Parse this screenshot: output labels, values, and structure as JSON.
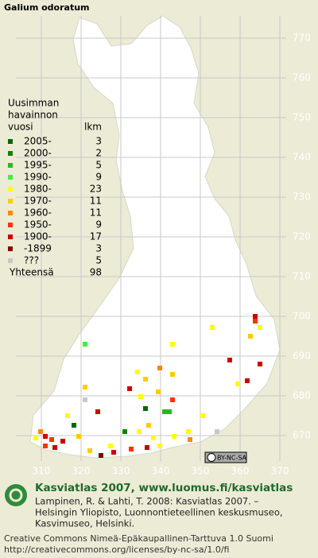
{
  "title": "Galium odoratum",
  "legend": {
    "heading": [
      "Uusimman",
      "havainnon",
      "vuosi"
    ],
    "count_heading": "lkm",
    "rows": [
      {
        "label": "2005-",
        "count": 3,
        "color": "#006600"
      },
      {
        "label": "2000-",
        "count": 2,
        "color": "#008800"
      },
      {
        "label": "1995-",
        "count": 5,
        "color": "#22bb22"
      },
      {
        "label": "1990-",
        "count": 9,
        "color": "#44ee44"
      },
      {
        "label": "1980-",
        "count": 23,
        "color": "#ffff00"
      },
      {
        "label": "1970-",
        "count": 11,
        "color": "#ffcc00"
      },
      {
        "label": "1960-",
        "count": 11,
        "color": "#ff8800"
      },
      {
        "label": "1950-",
        "count": 9,
        "color": "#ff3300"
      },
      {
        "label": "1900-",
        "count": 17,
        "color": "#cc0000"
      },
      {
        "label": "-1899",
        "count": 3,
        "color": "#880000"
      },
      {
        "label": "???",
        "count": 5,
        "color": "#c8c8c8"
      }
    ],
    "total_label": "Yhteensä",
    "total": 98
  },
  "map": {
    "northing": [
      770,
      760,
      750,
      740,
      730,
      720,
      710,
      700,
      690,
      680,
      670
    ],
    "easting": [
      310,
      320,
      330,
      340,
      350,
      360,
      370
    ]
  },
  "license_badge": "BY-NC-SA",
  "footer": {
    "heading": "Kasviatlas 2007, www.luomus.fi/kasviatlas",
    "citation": [
      "Lampinen, R. & Lahti, T. 2008: Kasviatlas 2007. –",
      "Helsingin Yliopisto, Luonnontieteellinen keskusmuseo,",
      "Kasvimuseo, Helsinki."
    ],
    "license": [
      "Creative Commons Nimeä-Epäkaupallinen-Tarttuva 1.0 Suomi",
      "http://creativecommons.org/licenses/by-nc-sa/1.0/fi"
    ]
  }
}
